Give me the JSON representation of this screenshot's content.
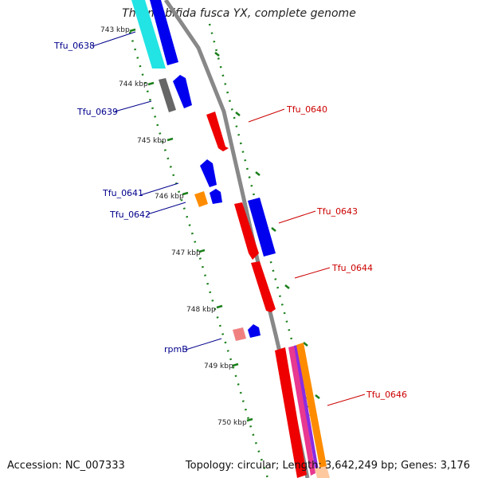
{
  "title": "Thermobifida fusca YX, complete genome",
  "footer": {
    "accession": "Accession: NC_007333",
    "summary": "Topology: circular; Length: 3,642,249 bp; Genes: 3,176"
  },
  "ticks": [
    "743 kbp",
    "744 kbp",
    "745 kbp",
    "746 kbp",
    "747 kbp",
    "748 kbp",
    "749 kbp",
    "750 kbp"
  ],
  "genes": {
    "Tfu_0638": "Tfu_0638",
    "Tfu_0639": "Tfu_0639",
    "Tfu_0640": "Tfu_0640",
    "Tfu_0641": "Tfu_0641",
    "Tfu_0642": "Tfu_0642",
    "Tfu_0643": "Tfu_0643",
    "Tfu_0644": "Tfu_0644",
    "rpmB": "rpmB",
    "Tfu_0646": "Tfu_0646"
  },
  "colors": {
    "blue_label": "#00008b",
    "red_label": "#cc0000",
    "backbone": "#888888",
    "ruler": "#1a7f1a",
    "cyan": "#22e4e4",
    "blue": "#0000ee",
    "gray": "#666666",
    "red": "#ee0000",
    "orange": "#ff8c00",
    "pink": "#f08080",
    "magenta": "#e8388f",
    "purple": "#8b2be2",
    "peach": "#ffc9a0"
  }
}
